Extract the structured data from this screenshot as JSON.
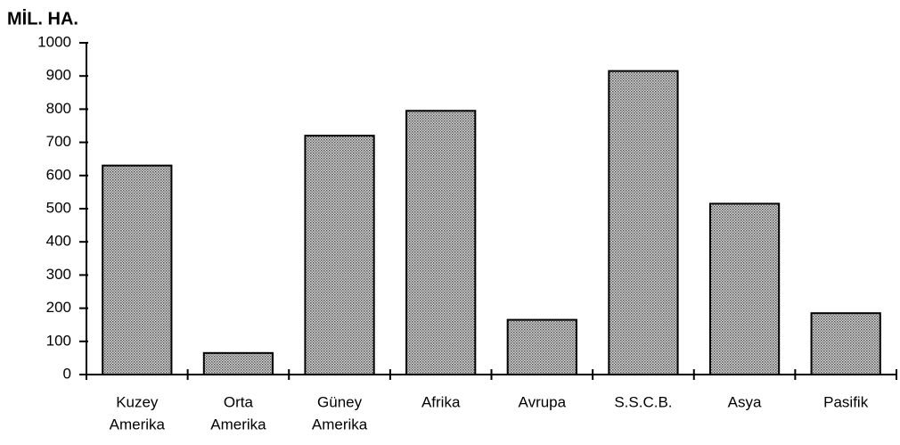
{
  "chart_data": {
    "type": "bar",
    "ylabel": "MİL. HA.",
    "categories": [
      [
        "Kuzey",
        "Amerika"
      ],
      [
        "Orta",
        "Amerika"
      ],
      [
        "Güney",
        "Amerika"
      ],
      [
        "Afrika"
      ],
      [
        "Avrupa"
      ],
      [
        "S.S.C.B."
      ],
      [
        "Asya"
      ],
      [
        "Pasifik"
      ]
    ],
    "values": [
      630,
      65,
      720,
      795,
      165,
      915,
      515,
      185
    ],
    "color": "#9a9a9a",
    "ylim": [
      0,
      1000
    ],
    "yticks": [
      0,
      100,
      200,
      300,
      400,
      500,
      600,
      700,
      800,
      900,
      1000
    ],
    "grid": false
  }
}
